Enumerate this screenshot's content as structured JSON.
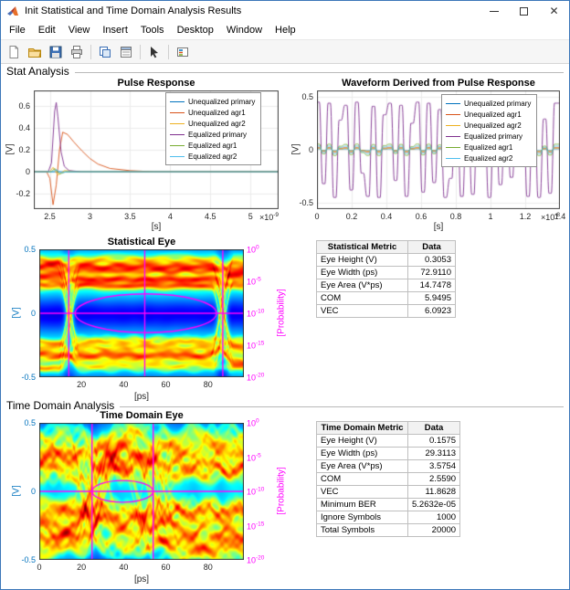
{
  "window": {
    "title": "Init Statistical and Time Domain Analysis Results"
  },
  "menu": {
    "items": [
      "File",
      "Edit",
      "View",
      "Insert",
      "Tools",
      "Desktop",
      "Window",
      "Help"
    ]
  },
  "toolbar": {
    "groups": [
      [
        "new-figure",
        "open-file",
        "save-figure",
        "print-figure"
      ],
      [
        "copy-figure",
        "property-inspector"
      ],
      [
        "edit-plot"
      ],
      [
        "insert-legend"
      ]
    ]
  },
  "sections": {
    "stat": "Stat Analysis",
    "time": "Time Domain Analysis"
  },
  "legend_labels": [
    "Unequalized primary",
    "Unequalized agr1",
    "Unequalized agr2",
    "Equalized primary",
    "Equalized agr1",
    "Equalized agr2"
  ],
  "colors": {
    "series": [
      "#0072BD",
      "#D95319",
      "#EDB120",
      "#7E2F8E",
      "#77AC30",
      "#4DBEEE"
    ],
    "magenta": "#FF00FF",
    "left_axis": "#0072BD",
    "grid": "#EBEBEB"
  },
  "chart_data": [
    {
      "id": "pulse",
      "type": "line",
      "title": "Pulse Response",
      "xlabel": "[s]",
      "ylabel": "[V]",
      "x_exp": -9,
      "xlim": [
        2.3,
        5.35
      ],
      "ylim": [
        -0.34,
        0.74
      ],
      "xticks": [
        2.5,
        3,
        3.5,
        4,
        4.5,
        5
      ],
      "yticks": [
        -0.2,
        0,
        0.2,
        0.4,
        0.6
      ],
      "legend_position": "northeast",
      "series": [
        {
          "name": "Unequalized primary",
          "color_index": 0,
          "points": [
            [
              2.3,
              0
            ],
            [
              5.35,
              0
            ]
          ]
        },
        {
          "name": "Unequalized agr1",
          "color_index": 1,
          "points": [
            [
              2.3,
              0
            ],
            [
              2.46,
              0
            ],
            [
              2.5,
              -0.06
            ],
            [
              2.54,
              -0.3
            ],
            [
              2.58,
              -0.12
            ],
            [
              2.62,
              0.2
            ],
            [
              2.66,
              0.36
            ],
            [
              2.72,
              0.34
            ],
            [
              2.8,
              0.27
            ],
            [
              2.9,
              0.19
            ],
            [
              3,
              0.12
            ],
            [
              3.1,
              0.07
            ],
            [
              3.25,
              0.03
            ],
            [
              3.5,
              0.01
            ],
            [
              3.8,
              0
            ],
            [
              5.35,
              0
            ]
          ]
        },
        {
          "name": "Unequalized agr2",
          "color_index": 2,
          "points": [
            [
              2.3,
              0
            ],
            [
              2.5,
              0
            ],
            [
              2.54,
              0.04
            ],
            [
              2.6,
              -0.03
            ],
            [
              2.68,
              0.01
            ],
            [
              2.9,
              0
            ],
            [
              5.35,
              0
            ]
          ]
        },
        {
          "name": "Equalized primary",
          "color_index": 3,
          "points": [
            [
              2.3,
              0
            ],
            [
              2.48,
              0
            ],
            [
              2.52,
              0.08
            ],
            [
              2.56,
              0.55
            ],
            [
              2.58,
              0.63
            ],
            [
              2.6,
              0.5
            ],
            [
              2.64,
              0.18
            ],
            [
              2.68,
              0.05
            ],
            [
              2.74,
              0.01
            ],
            [
              2.9,
              0
            ],
            [
              5.35,
              0
            ]
          ]
        },
        {
          "name": "Equalized agr1",
          "color_index": 4,
          "points": [
            [
              2.3,
              0
            ],
            [
              2.52,
              0
            ],
            [
              2.56,
              0.03
            ],
            [
              2.62,
              -0.02
            ],
            [
              2.7,
              0
            ],
            [
              5.35,
              0
            ]
          ]
        },
        {
          "name": "Equalized agr2",
          "color_index": 5,
          "points": [
            [
              2.3,
              0
            ],
            [
              2.54,
              0
            ],
            [
              2.58,
              0.02
            ],
            [
              2.64,
              -0.01
            ],
            [
              2.72,
              0
            ],
            [
              5.35,
              0
            ]
          ]
        }
      ]
    },
    {
      "id": "waveform",
      "type": "line",
      "title": "Waveform Derived from Pulse Response",
      "xlabel": "[s]",
      "ylabel": "[V]",
      "x_exp": -8,
      "xlim": [
        0,
        1.4
      ],
      "ylim": [
        -0.56,
        0.56
      ],
      "xticks": [
        0,
        0.2,
        0.4,
        0.6,
        0.8,
        1,
        1.2,
        1.4
      ],
      "yticks": [
        -0.5,
        0,
        0.5
      ],
      "legend_position": "northeast",
      "symbols": [
        0.45,
        -0.32,
        0.44,
        -0.45,
        0.28,
        0.42,
        -0.38,
        0.45,
        -0.22,
        -0.44,
        0.41,
        -0.45,
        0.33,
        0.44,
        -0.29,
        0.42,
        -0.44,
        0.25,
        0.45,
        -0.4,
        0.44,
        -0.31,
        0.38,
        -0.45,
        -0.27,
        0.43,
        -0.44,
        0.35,
        -0.42,
        0.44,
        0.3,
        -0.45,
        0.41,
        -0.33,
        0.44,
        -0.26,
        0.43,
        0.36,
        -0.44,
        0.42,
        -0.45,
        0.29,
        -0.41,
        0.44
      ],
      "series": [
        {
          "name": "Unequalized primary",
          "color_index": 0,
          "scale": 0.02
        },
        {
          "name": "Unequalized agr1",
          "color_index": 1,
          "scale": 0.05
        },
        {
          "name": "Unequalized agr2",
          "color_index": 2,
          "scale": 0.03
        },
        {
          "name": "Equalized primary",
          "color_index": 3,
          "scale": 1
        },
        {
          "name": "Equalized agr1",
          "color_index": 4,
          "scale": 0.12
        },
        {
          "name": "Equalized agr2",
          "color_index": 5,
          "scale": 0.08
        }
      ]
    },
    {
      "id": "statEye",
      "type": "heatmap",
      "title": "Statistical Eye",
      "xlabel": "[ps]",
      "ylabel_left": "[V]",
      "ylabel_right": "[Probability]",
      "xlim": [
        0,
        97
      ],
      "ylim": [
        -0.5,
        0.5
      ],
      "xticks": [
        20,
        40,
        60,
        80
      ],
      "yticks": [
        0.5,
        0,
        -0.5
      ],
      "right_tick_exponents": [
        0,
        -5,
        -10,
        -15,
        -20
      ],
      "eye": {
        "seed": 7,
        "n": 40,
        "cross_left": 14,
        "cross_right": 87,
        "amp_min": 0.2,
        "amp_max": 0.44,
        "sigma": 0.022,
        "halo_sigma": 0.13,
        "halo_weight": 0.12,
        "jitter": 1.5,
        "trans_width": 9,
        "gamma": 0.45,
        "noise": 0.012
      },
      "overlays": {
        "verticals": [
          14,
          50,
          87
        ],
        "horizontal": 0,
        "lens": {
          "x0": 17,
          "x1": 84,
          "half_height": 0.152
        }
      }
    },
    {
      "id": "tdEye",
      "type": "heatmap",
      "title": "Time Domain Eye",
      "xlabel": "[ps]",
      "ylabel_left": "[V]",
      "ylabel_right": "[Probability]",
      "xlim": [
        0,
        97
      ],
      "ylim": [
        -0.5,
        0.5
      ],
      "xticks": [
        0,
        20,
        40,
        60,
        80
      ],
      "yticks": [
        0.5,
        0,
        -0.5
      ],
      "right_tick_exponents": [
        0,
        -5,
        -10,
        -15,
        -20
      ],
      "eye": {
        "seed": 3,
        "n": 50,
        "cross_left": 25,
        "cross_right": 54,
        "amp_min": 0.1,
        "amp_max": 0.47,
        "sigma": 0.03,
        "halo_sigma": 0.17,
        "halo_weight": 0.14,
        "jitter": 8,
        "trans_width": 14,
        "gamma": 0.5,
        "noise": 0.05
      },
      "overlays": {
        "verticals": [
          25,
          54
        ],
        "horizontal": 0,
        "lens": {
          "x0": 25,
          "x1": 54,
          "half_height": 0.079
        }
      }
    }
  ],
  "tables": {
    "stat": {
      "headers": [
        "Statistical Metric",
        "Data"
      ],
      "rows": [
        [
          "Eye Height (V)",
          "0.3053"
        ],
        [
          "Eye Width (ps)",
          "72.9110"
        ],
        [
          "Eye Area (V*ps)",
          "14.7478"
        ],
        [
          "COM",
          "5.9495"
        ],
        [
          "VEC",
          "6.0923"
        ]
      ]
    },
    "time": {
      "headers": [
        "Time Domain Metric",
        "Data"
      ],
      "rows": [
        [
          "Eye Height (V)",
          "0.1575"
        ],
        [
          "Eye Width (ps)",
          "29.3113"
        ],
        [
          "Eye Area (V*ps)",
          "3.5754"
        ],
        [
          "COM",
          "2.5590"
        ],
        [
          "VEC",
          "11.8628"
        ],
        [
          "Minimum BER",
          "5.2632e-05"
        ],
        [
          "Ignore Symbols",
          "1000"
        ],
        [
          "Total Symbols",
          "20000"
        ]
      ]
    }
  }
}
